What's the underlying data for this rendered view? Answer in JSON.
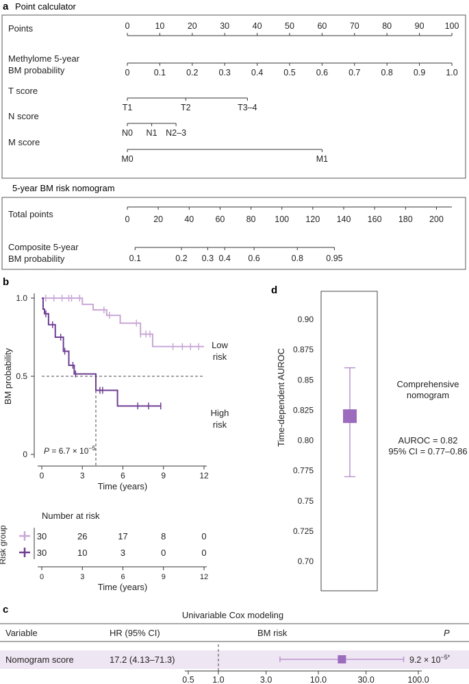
{
  "colors": {
    "low_risk": "#c9a6d6",
    "high_risk": "#6e3c93",
    "box_fill": "#9b6cbd",
    "forest_point": "#9b6cbd",
    "forest_line": "#b994cf",
    "row_band": "#eee6f3",
    "axis": "#333333",
    "text": "#222222"
  },
  "panel_a": {
    "label": "a",
    "title": "Point calculator",
    "rows": [
      {
        "name": "Points",
        "ticks": [
          "0",
          "10",
          "20",
          "30",
          "40",
          "50",
          "60",
          "70",
          "80",
          "90",
          "100"
        ]
      },
      {
        "name_lines": [
          "Methylome 5-year",
          "BM probability"
        ],
        "ticks": [
          "0",
          "0.1",
          "0.2",
          "0.3",
          "0.4",
          "0.5",
          "0.6",
          "0.7",
          "0.8",
          "0.9",
          "1.0"
        ]
      },
      {
        "name": "T score",
        "ticks": [
          "T1",
          "T2",
          "T3–4"
        ],
        "points": [
          0,
          18,
          37
        ]
      },
      {
        "name": "N score",
        "ticks": [
          "N0",
          "N1",
          "N2–3"
        ],
        "points": [
          0,
          7.5,
          15
        ]
      },
      {
        "name": "M score",
        "ticks": [
          "M0",
          "M1"
        ],
        "points": [
          0,
          60
        ]
      }
    ],
    "nomogram_title": "5-year BM risk nomogram",
    "total_points": {
      "name": "Total points",
      "ticks": [
        "0",
        "20",
        "40",
        "60",
        "80",
        "100",
        "120",
        "140",
        "160",
        "180",
        "200"
      ],
      "max": 210
    },
    "composite": {
      "name_lines": [
        "Composite 5-year",
        "BM probability"
      ],
      "ticks": [
        "0.1",
        "0.2",
        "0.3",
        "0.4",
        "0.6",
        "0.8",
        "0.95"
      ],
      "points": [
        5,
        35,
        52,
        63,
        82,
        110,
        134
      ]
    }
  },
  "chart_data": [
    {
      "panel": "b",
      "type": "line",
      "title": "",
      "xlabel": "Time (years)",
      "ylabel": "BM probability",
      "xlim": [
        0,
        12
      ],
      "ylim": [
        0,
        1
      ],
      "x_ticks": [
        "0",
        "3",
        "6",
        "9",
        "12"
      ],
      "y_ticks": [
        "0",
        "0.5",
        "1.0"
      ],
      "p_value": {
        "prefix": "P",
        "text": " = 6.7 × 10",
        "exponent": "−5"
      },
      "median_line": {
        "y": 0.5,
        "x": 4.0
      },
      "series": [
        {
          "name_lines": [
            "Low",
            "risk"
          ],
          "color_key": "low_risk",
          "steps": [
            [
              0,
              1.0
            ],
            [
              3.0,
              0.96
            ],
            [
              3.8,
              0.925
            ],
            [
              4.8,
              0.89
            ],
            [
              5.8,
              0.84
            ],
            [
              7.3,
              0.77
            ],
            [
              8.2,
              0.69
            ],
            [
              12.0,
              0.69
            ]
          ],
          "censor": [
            0.3,
            0.9,
            1.5,
            2.0,
            2.2,
            2.8,
            4.6,
            5.0,
            7.0,
            7.3,
            7.7,
            8.0,
            9.7,
            10.4,
            11.0,
            11.6
          ]
        },
        {
          "name_lines": [
            "High",
            "risk"
          ],
          "color_key": "high_risk",
          "steps": [
            [
              0,
              1.0
            ],
            [
              0.1,
              0.93
            ],
            [
              0.2,
              0.9
            ],
            [
              0.5,
              0.83
            ],
            [
              1.0,
              0.75
            ],
            [
              1.6,
              0.66
            ],
            [
              2.0,
              0.57
            ],
            [
              2.4,
              0.515
            ],
            [
              4.0,
              0.41
            ],
            [
              5.6,
              0.31
            ],
            [
              8.8,
              0.31
            ]
          ],
          "censor": [
            0.3,
            0.8,
            1.4,
            1.7,
            2.3,
            2.5,
            4.3,
            4.5,
            7.1,
            7.9,
            8.8
          ]
        }
      ],
      "risk_table": {
        "title": "Number at risk",
        "ylabel": "Risk group",
        "xlabel": "Time (years)",
        "rows": [
          {
            "color_key": "low_risk",
            "values": [
              "30",
              "26",
              "17",
              "8",
              "0"
            ]
          },
          {
            "color_key": "high_risk",
            "values": [
              "30",
              "10",
              "3",
              "0",
              "0"
            ]
          }
        ]
      }
    },
    {
      "panel": "d",
      "type": "scatter",
      "title": "",
      "ylabel": "Time-dependent AUROC",
      "ylim": [
        0.68,
        0.93
      ],
      "y_ticks": [
        "0.70",
        "0.725",
        "0.75",
        "0.775",
        "0.80",
        "0.825",
        "0.85",
        "0.875",
        "0.90"
      ],
      "y_tick_values": [
        0.7,
        0.725,
        0.75,
        0.775,
        0.8,
        0.825,
        0.85,
        0.875,
        0.9
      ],
      "point": {
        "value": 0.82,
        "ci_low": 0.77,
        "ci_high": 0.86
      },
      "annotation_lines": [
        "Comprehensive",
        "nomogram"
      ],
      "stat_lines": [
        "AUROC = 0.82",
        "95% CI = 0.77–0.86"
      ]
    },
    {
      "panel": "c",
      "type": "scatter",
      "title": "Univariable Cox modeling",
      "headers": [
        "Variable",
        "HR (95% CI)",
        "BM risk",
        "P"
      ],
      "scale": "log",
      "xlim": [
        0.5,
        100
      ],
      "x_ticks": [
        "0.5",
        "1.0",
        "3.0",
        "10.0",
        "30.0",
        "100.0"
      ],
      "x_tick_values": [
        0.5,
        1.0,
        3.0,
        10.0,
        30.0,
        100.0
      ],
      "reference": 1.0,
      "rows": [
        {
          "variable": "Nomogram score",
          "hr_text": "17.2 (4.13–71.3)",
          "hr": 17.2,
          "ci_low": 4.13,
          "ci_high": 71.3,
          "p_text": "9.2 × 10",
          "p_exp": "−5*"
        }
      ]
    }
  ],
  "panel_labels": {
    "b": "b",
    "c": "c",
    "d": "d"
  }
}
